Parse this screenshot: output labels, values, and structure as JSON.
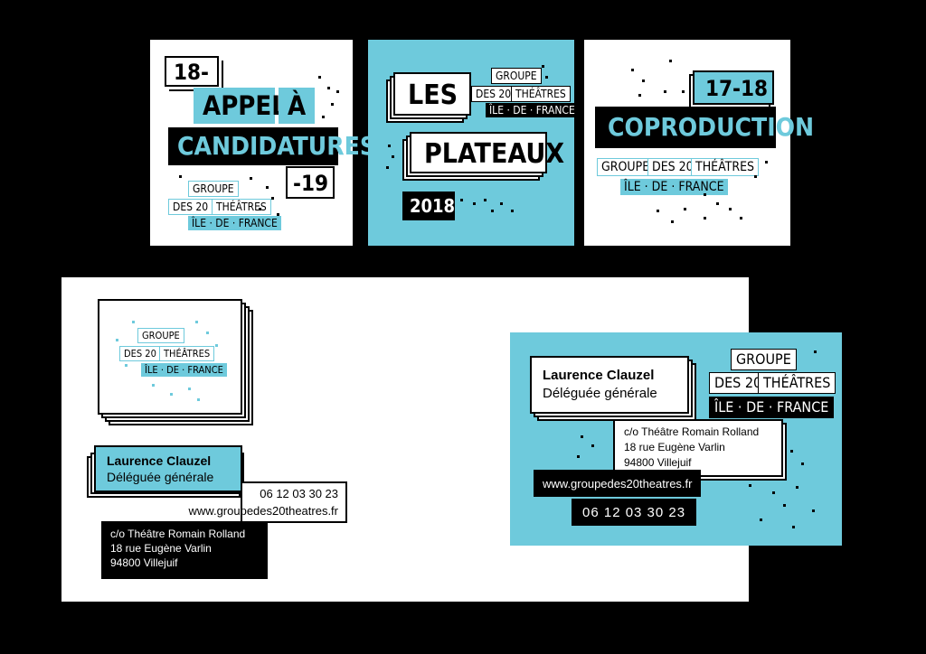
{
  "cards": {
    "appel": {
      "year_start": "18-",
      "title_line1_a": "APPEL",
      "title_line1_b": "À",
      "title_line2": "CANDIDATURES",
      "year_end": "-19"
    },
    "plateaux": {
      "title_line1": "LES",
      "title_line2": "PLATEAUX",
      "year": "2018"
    },
    "coproduction": {
      "years": "17-18",
      "title": "COPRODUCTION"
    }
  },
  "logo": {
    "line1": "GROUPE",
    "line2a": "DES 20",
    "line2b": "THÉÂTRES",
    "line3": "ÎLE-DE-FRANCE",
    "line3_spaced": "ÎLE · DE · FRANCE"
  },
  "contact": {
    "name": "Laurence Clauzel",
    "role": "Déléguée générale",
    "phone": "06 12 03 30 23",
    "website": "www.groupedes20theatres.fr",
    "address_line1": "c/o Théâtre Romain Rolland",
    "address_line2": "18 rue Eugène Varlin",
    "address_line3": "94800 Villejuif"
  },
  "colors": {
    "accent": "#6ecadc",
    "background": "#000000",
    "paper": "#ffffff"
  }
}
